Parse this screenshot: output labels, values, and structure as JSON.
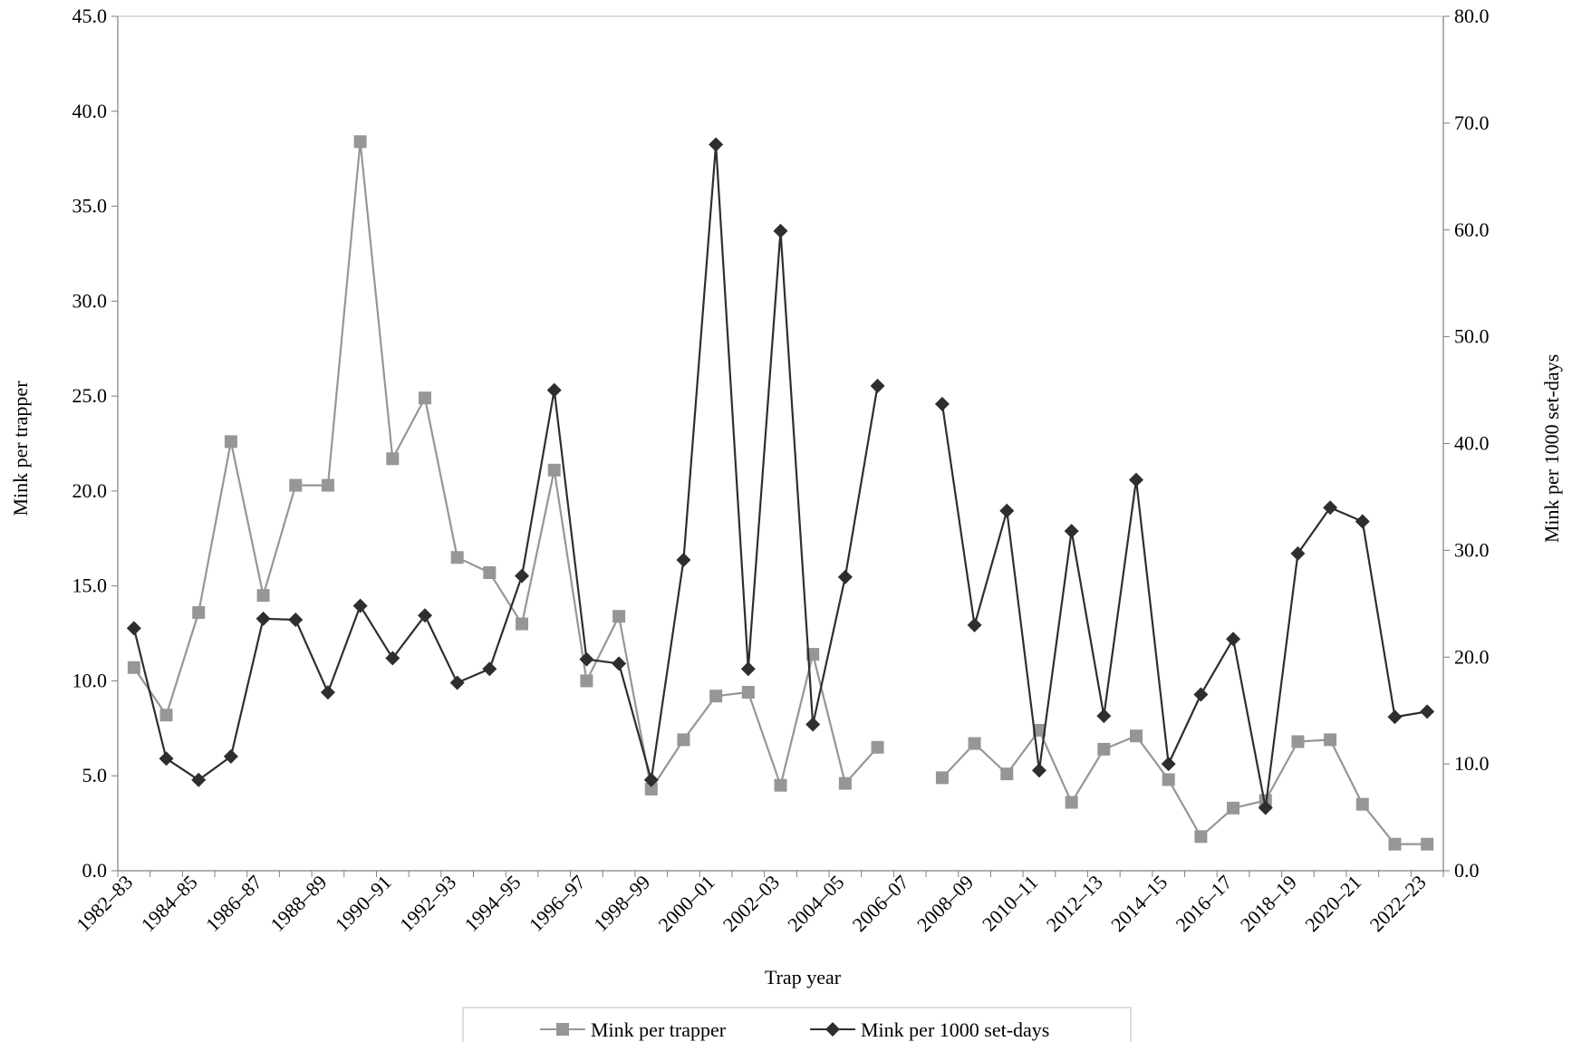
{
  "chart_data": {
    "type": "line",
    "xlabel": "Trap year",
    "ylabel_left": "Mink per trapper",
    "ylabel_right": "Mink per 1000 set-days",
    "ylim_left": [
      0,
      45
    ],
    "ylim_right": [
      0,
      80
    ],
    "yticks_left": [
      "0.0",
      "5.0",
      "10.0",
      "15.0",
      "20.0",
      "25.0",
      "30.0",
      "35.0",
      "40.0",
      "45.0"
    ],
    "yticks_right": [
      "0.0",
      "10.0",
      "20.0",
      "30.0",
      "40.0",
      "50.0",
      "60.0",
      "70.0",
      "80.0"
    ],
    "x_tick_labels": [
      "1982–83",
      "1984–85",
      "1986–87",
      "1988–89",
      "1990–91",
      "1992–93",
      "1994–95",
      "1996–97",
      "1998–99",
      "2000–01",
      "2002–03",
      "2004–05",
      "2006–07",
      "2008–09",
      "2010–11",
      "2012–13",
      "2014–15",
      "2016–17",
      "2018–19",
      "2020–21",
      "2022–23"
    ],
    "categories": [
      "1982–83",
      "1983–84",
      "1984–85",
      "1985–86",
      "1986–87",
      "1987–88",
      "1988–89",
      "1989–90",
      "1990–91",
      "1991–92",
      "1992–93",
      "1993–94",
      "1994–95",
      "1995–96",
      "1996–97",
      "1997–98",
      "1998–99",
      "1999–00",
      "2000–01",
      "2001–02",
      "2002–03",
      "2003–04",
      "2004–05",
      "2005–06",
      "2006–07",
      "2007–08",
      "2008–09",
      "2009–10",
      "2010–11",
      "2011–12",
      "2012–13",
      "2013–14",
      "2014–15",
      "2015–16",
      "2016–17",
      "2017–18",
      "2018–19",
      "2019–20",
      "2020–21",
      "2021–22",
      "2022–23"
    ],
    "legend_position": "bottom",
    "grid": false,
    "series": [
      {
        "name": "Mink per trapper",
        "axis": "left",
        "color": "#969696",
        "marker": "square",
        "values": [
          10.7,
          8.2,
          13.6,
          22.6,
          14.5,
          20.3,
          20.3,
          38.4,
          21.7,
          24.9,
          16.5,
          15.7,
          13.0,
          21.1,
          10.0,
          13.4,
          4.3,
          6.9,
          9.2,
          9.4,
          4.5,
          11.4,
          4.6,
          6.5,
          null,
          4.9,
          6.7,
          5.1,
          7.4,
          3.6,
          6.4,
          7.1,
          4.8,
          1.8,
          3.3,
          3.7,
          6.8,
          6.9,
          3.5,
          1.4,
          1.4
        ]
      },
      {
        "name": "Mink per 1000 set-days",
        "axis": "right",
        "color": "#2e2e2e",
        "marker": "diamond",
        "values": [
          22.7,
          10.5,
          8.5,
          10.7,
          23.6,
          23.5,
          16.7,
          24.8,
          19.9,
          23.9,
          17.6,
          18.9,
          27.6,
          45.0,
          19.8,
          19.4,
          8.5,
          29.1,
          68.0,
          18.9,
          59.9,
          13.7,
          27.5,
          45.4,
          null,
          43.7,
          23.0,
          33.7,
          9.4,
          31.8,
          14.5,
          36.6,
          10.0,
          16.5,
          21.7,
          5.9,
          29.7,
          34.0,
          32.7,
          14.4,
          14.9
        ]
      }
    ]
  }
}
